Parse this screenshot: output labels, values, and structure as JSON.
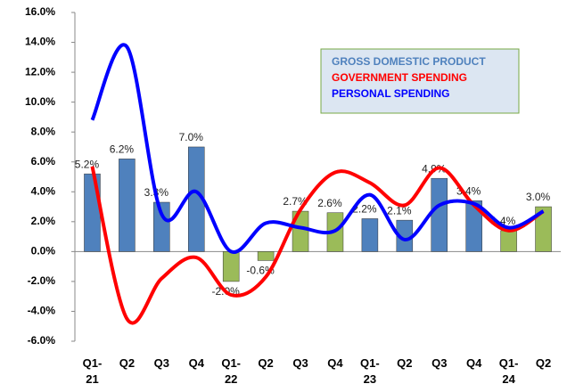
{
  "chart_data": {
    "type": "bar",
    "categories": [
      "Q1-\n21",
      "Q2",
      "Q3",
      "Q4",
      "Q1-\n22",
      "Q2",
      "Q3",
      "Q4",
      "Q1-\n23",
      "Q2",
      "Q3",
      "Q4",
      "Q1-\n24",
      "Q2"
    ],
    "series": [
      {
        "name": "GROSS DOMESTIC PRODUCT",
        "type": "bar",
        "color": "#4f81bd",
        "colors": [
          "#4f81bd",
          "#4f81bd",
          "#4f81bd",
          "#4f81bd",
          "#9bbb59",
          "#9bbb59",
          "#9bbb59",
          "#9bbb59",
          "#4f81bd",
          "#4f81bd",
          "#4f81bd",
          "#4f81bd",
          "#9bbb59",
          "#9bbb59"
        ],
        "values": [
          5.2,
          6.2,
          3.3,
          7.0,
          -2.0,
          -0.6,
          2.7,
          2.6,
          2.2,
          2.1,
          4.9,
          3.4,
          1.4,
          3.0
        ],
        "value_labels": [
          "5.2%",
          "6.2%",
          "3.3%",
          "7.0%",
          "-2.0%",
          "-0.6%",
          "2.7%",
          "2.6%",
          "2.2%",
          "2.1%",
          "4.9%",
          "3.4%",
          "1.4%",
          "3.0%"
        ]
      },
      {
        "name": "GOVERNMENT SPENDING",
        "type": "line",
        "color": "#ff0000",
        "values": [
          5.7,
          -4.5,
          -1.8,
          -0.4,
          -2.9,
          -1.7,
          2.8,
          5.3,
          4.6,
          3.1,
          5.6,
          3.1,
          1.4,
          2.7
        ]
      },
      {
        "name": "PERSONAL SPENDING",
        "type": "line",
        "color": "#0000ff",
        "values": [
          8.8,
          13.7,
          2.5,
          4.0,
          0.0,
          1.9,
          1.6,
          1.4,
          3.8,
          0.8,
          3.1,
          3.2,
          1.6,
          2.7
        ]
      }
    ],
    "ylim": [
      -6,
      16
    ],
    "yticks": [
      {
        "value": -6,
        "label": "-6.0%"
      },
      {
        "value": -4,
        "label": "-4.0%"
      },
      {
        "value": -2,
        "label": "-2.0%"
      },
      {
        "value": 0,
        "label": "0.0%"
      },
      {
        "value": 2,
        "label": "2.0%"
      },
      {
        "value": 4,
        "label": "4.0%"
      },
      {
        "value": 6,
        "label": "6.0%"
      },
      {
        "value": 8,
        "label": "8.0%"
      },
      {
        "value": 10,
        "label": "10.0%"
      },
      {
        "value": 12,
        "label": "12.0%"
      },
      {
        "value": 14,
        "label": "14.0%"
      },
      {
        "value": 16,
        "label": "16.0%"
      }
    ],
    "grid": false
  }
}
